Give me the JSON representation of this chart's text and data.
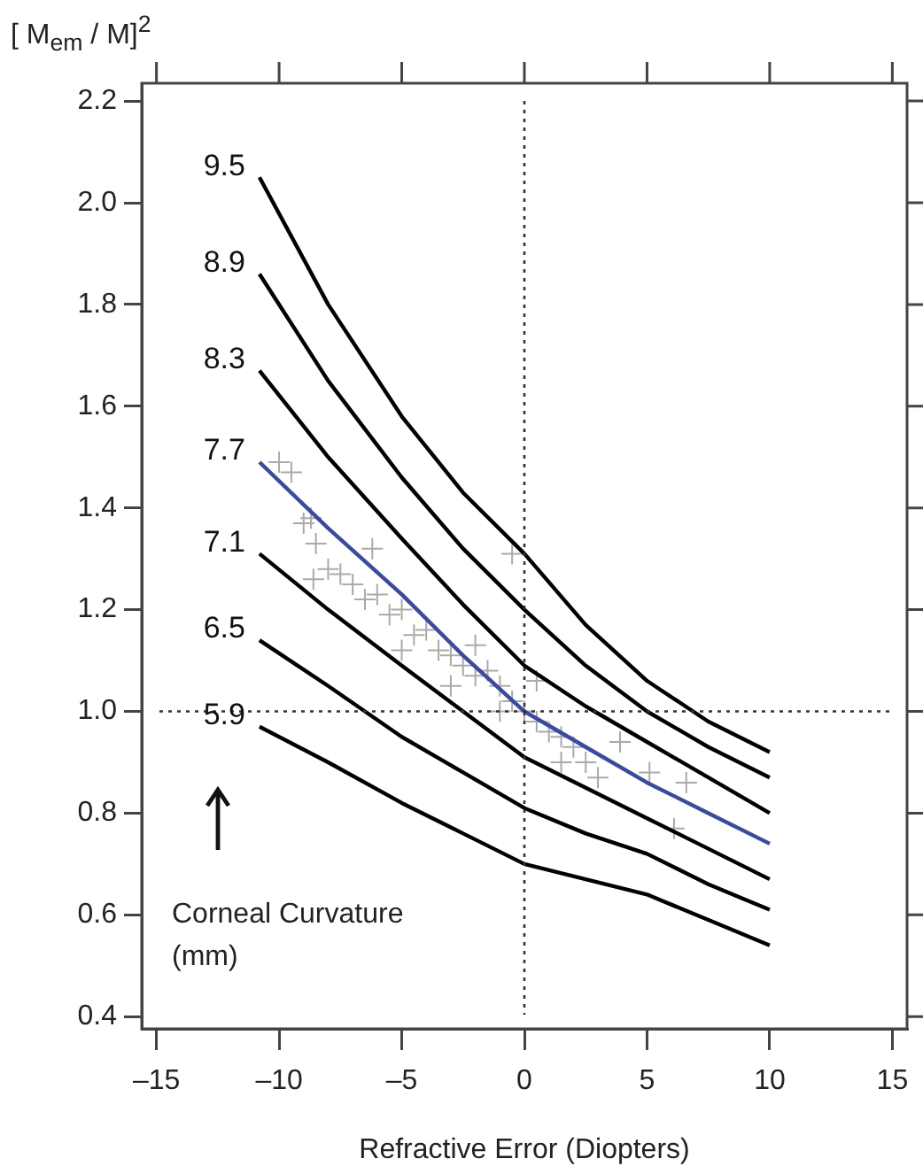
{
  "chart_data": {
    "type": "line",
    "xlabel": "Refractive Error (Diopters)",
    "ylabel": "[ M$_{em}$ / M]$^{2}$",
    "xlim": [
      -15.6,
      15.6
    ],
    "xticks": [
      {
        "value": -15,
        "label": "–15"
      },
      {
        "value": -10,
        "label": "–10"
      },
      {
        "value": -5,
        "label": "–5"
      },
      0,
      5,
      10,
      15
    ],
    "ylim": [
      0.376,
      2.235
    ],
    "yticks": [
      0.4,
      0.6,
      0.8,
      {
        "value": 1,
        "label": "1.0"
      },
      1.2,
      1.4,
      1.6,
      1.8,
      {
        "value": 2,
        "label": "2.0"
      },
      2.2
    ],
    "grid": false,
    "legend": false,
    "tick_labels": "xy",
    "x": [
      -10.8,
      -8,
      -5,
      -2.5,
      0,
      2.5,
      5,
      7.5,
      10
    ],
    "series": [
      {
        "name": "9.5",
        "color": "#000000",
        "marker": "none",
        "values": [
          2.05,
          1.8,
          1.58,
          1.43,
          1.31,
          1.17,
          1.06,
          0.98,
          0.92
        ]
      },
      {
        "name": "8.9",
        "color": "#000000",
        "marker": "none",
        "values": [
          1.86,
          1.65,
          1.46,
          1.32,
          1.2,
          1.09,
          1.0,
          0.93,
          0.87
        ]
      },
      {
        "name": "8.3",
        "color": "#000000",
        "marker": "none",
        "values": [
          1.67,
          1.5,
          1.34,
          1.21,
          1.09,
          1.01,
          0.94,
          0.87,
          0.8
        ]
      },
      {
        "name": "7.7",
        "color": "#3a4aa0",
        "marker": "none",
        "values": [
          1.49,
          1.36,
          1.23,
          1.11,
          1.0,
          0.93,
          0.86,
          0.8,
          0.74
        ]
      },
      {
        "name": "7.1",
        "color": "#000000",
        "marker": "none",
        "values": [
          1.31,
          1.2,
          1.09,
          1.0,
          0.91,
          0.85,
          0.79,
          0.73,
          0.67
        ]
      },
      {
        "name": "6.5",
        "color": "#000000",
        "marker": "none",
        "values": [
          1.14,
          1.05,
          0.95,
          0.88,
          0.81,
          0.76,
          0.72,
          0.66,
          0.61
        ]
      },
      {
        "name": "5.9",
        "color": "#000000",
        "marker": "none",
        "values": [
          0.97,
          0.9,
          0.82,
          0.76,
          0.7,
          0.67,
          0.64,
          0.59,
          0.54
        ]
      },
      {
        "type": "scatter",
        "color": "#aaaaaa",
        "marker": "cross",
        "x": [
          -10,
          -9.5,
          -9,
          -8.7,
          -8.5,
          -8.6,
          -8,
          -7.5,
          -7,
          -6.5,
          -6.2,
          -6,
          -5.5,
          -5,
          -4.5,
          -4,
          -3.5,
          -3,
          -2.5,
          -2,
          -1.5,
          -1,
          -0.5,
          -0.5,
          0,
          -1,
          0.5,
          1,
          1.5,
          2,
          2.5,
          3,
          3.9,
          5.1,
          6.6,
          6.1,
          -3,
          -5,
          -2,
          0.5,
          1.5
        ],
        "values": [
          1.49,
          1.47,
          1.37,
          1.38,
          1.33,
          1.26,
          1.28,
          1.27,
          1.25,
          1.22,
          1.32,
          1.23,
          1.19,
          1.2,
          1.15,
          1.16,
          1.12,
          1.11,
          1.09,
          1.07,
          1.08,
          1.05,
          1.02,
          1.31,
          1.0,
          1.0,
          0.98,
          0.96,
          0.95,
          0.93,
          0.9,
          0.87,
          0.94,
          0.88,
          0.86,
          0.77,
          1.05,
          1.12,
          1.13,
          1.06,
          0.9
        ]
      }
    ],
    "ref_lines": [
      {
        "axis": "x",
        "value": 0,
        "line_style": "dotted"
      },
      {
        "axis": "y",
        "value": 1.0,
        "line_style": "dotted"
      }
    ],
    "annotations": [
      "Corneal Curvature (mm)"
    ]
  }
}
